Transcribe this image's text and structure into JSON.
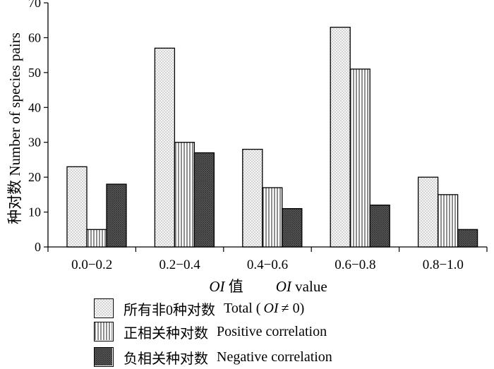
{
  "chart_data": {
    "type": "bar",
    "categories": [
      "0.0−0.2",
      "0.2−0.4",
      "0.4−0.6",
      "0.6−0.8",
      "0.8−1.0"
    ],
    "series": [
      {
        "name": "所有非0种对数  Total (OI ≠ 0)",
        "values": [
          23,
          57,
          28,
          63,
          20
        ],
        "pattern": "dots"
      },
      {
        "name": "正相关种对数  Positive correlation",
        "values": [
          5,
          30,
          17,
          51,
          15
        ],
        "pattern": "vertical-lines"
      },
      {
        "name": "负相关种对数  Negative correlation",
        "values": [
          18,
          27,
          11,
          12,
          5
        ],
        "pattern": "dark-crosshatch"
      }
    ],
    "ylabel": "种对数  Number of species pairs",
    "xlabel": {
      "oi_italic": "OI",
      "zh": " 值",
      "oi_italic_2": "OI",
      "en": " value"
    },
    "ylim": [
      0,
      70
    ],
    "yticks": [
      0,
      10,
      20,
      30,
      40,
      50,
      60,
      70
    ],
    "grid": false,
    "legend_position": "bottom",
    "legend": [
      {
        "zh": "所有非0种对数",
        "en_pre": "Total (",
        "en_oi": "OI",
        "en_post": "≠ 0)"
      },
      {
        "zh": "正相关种对数",
        "en": "Positive correlation"
      },
      {
        "zh": "负相关种对数",
        "en": "Negative correlation"
      }
    ],
    "colors": {
      "total": "#f2f2f2",
      "positive": "#ffffff",
      "negative": "#555555",
      "axis": "#000000"
    }
  }
}
